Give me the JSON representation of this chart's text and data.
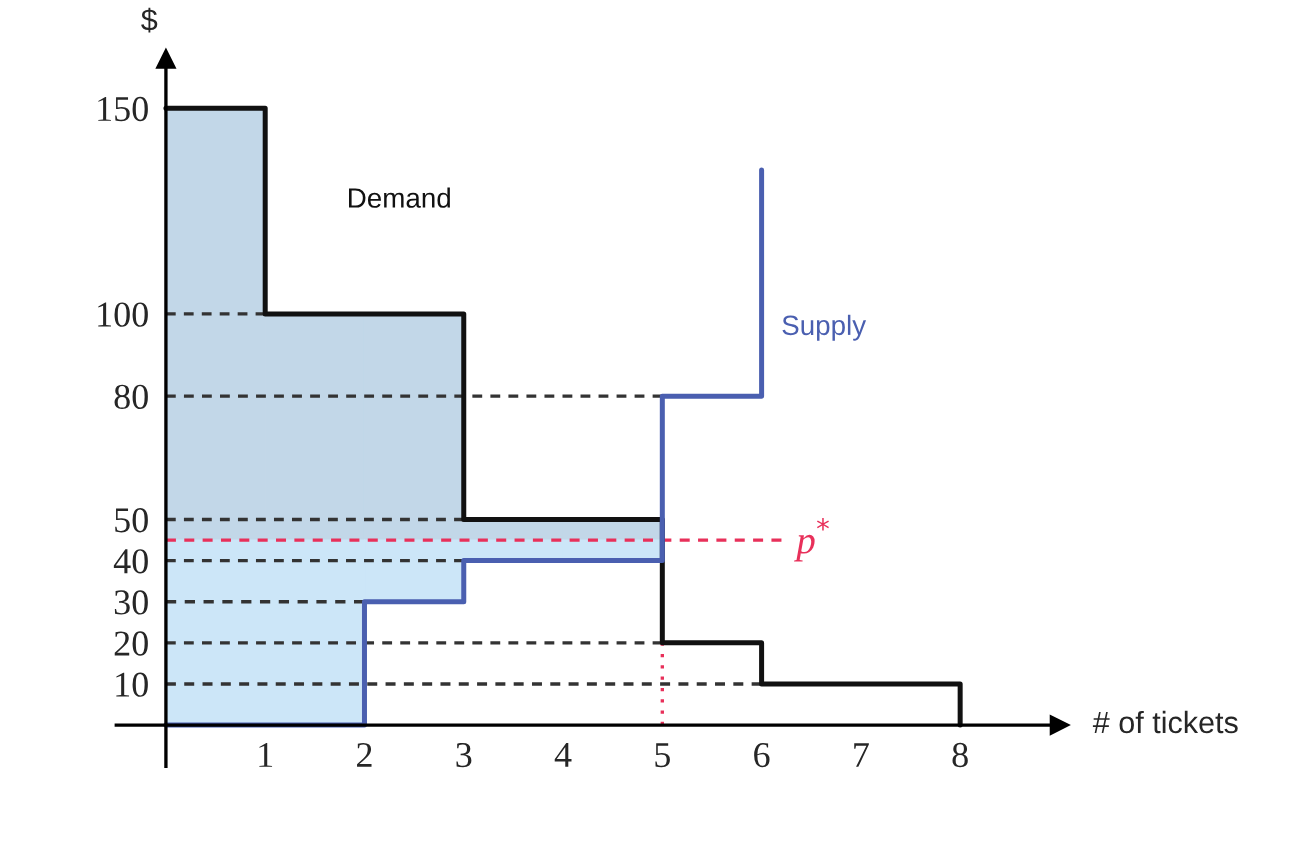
{
  "chart_data": {
    "type": "step",
    "xlabel": "# of tickets",
    "ylabel": "$",
    "xlim": [
      -0.5,
      9
    ],
    "ylim": [
      -10,
      162
    ],
    "xticks": [
      1,
      2,
      3,
      4,
      5,
      6,
      7,
      8
    ],
    "yticks": [
      10,
      20,
      30,
      40,
      50,
      80,
      100,
      150
    ],
    "grid": false,
    "legend": false,
    "series": [
      {
        "type": "bar",
        "color": "#c2d7e8",
        "x": [
          0.5,
          1.5,
          2.5,
          3.5,
          4.5
        ],
        "base": [
          45,
          45,
          45,
          45,
          45
        ],
        "values": [
          105,
          55,
          55,
          5,
          5
        ]
      },
      {
        "type": "bar",
        "color": "#cce6f8",
        "x": [
          0.5,
          1.5,
          2.5,
          3.5,
          4.5
        ],
        "base": [
          0,
          0,
          30,
          40,
          40
        ],
        "values": [
          45,
          45,
          15,
          5,
          5
        ]
      },
      {
        "type": "line",
        "color": "#333333",
        "line_style": "dashed",
        "x": [
          0,
          1
        ],
        "values": [
          100,
          100
        ]
      },
      {
        "type": "line",
        "color": "#333333",
        "line_style": "dashed",
        "x": [
          0,
          5
        ],
        "values": [
          80,
          80
        ]
      },
      {
        "type": "line",
        "color": "#333333",
        "line_style": "dashed",
        "x": [
          0,
          3
        ],
        "values": [
          50,
          50
        ]
      },
      {
        "type": "line",
        "color": "#333333",
        "line_style": "dashed",
        "x": [
          0,
          3
        ],
        "values": [
          40,
          40
        ]
      },
      {
        "type": "line",
        "color": "#333333",
        "line_style": "dashed",
        "x": [
          0,
          2
        ],
        "values": [
          30,
          30
        ]
      },
      {
        "type": "line",
        "color": "#333333",
        "line_style": "dashed",
        "x": [
          0,
          5
        ],
        "values": [
          20,
          20
        ]
      },
      {
        "type": "line",
        "color": "#333333",
        "line_style": "dashed",
        "x": [
          0,
          6
        ],
        "values": [
          10,
          10
        ]
      },
      {
        "type": "line",
        "color": "#e8305a",
        "line_style": "dotted",
        "x": [
          5,
          5
        ],
        "values": [
          0,
          20
        ]
      },
      {
        "type": "line",
        "name": "p$^{*}$",
        "color": "#e8305a",
        "line_style": "dashed",
        "x": [
          0,
          6.2
        ],
        "values": [
          45,
          45
        ]
      },
      {
        "name": "Demand",
        "color": "#111111",
        "line_style": "solid",
        "x": [
          0,
          1,
          3,
          5,
          6,
          8
        ],
        "values": [
          150,
          100,
          50,
          20,
          10,
          0
        ]
      },
      {
        "name": "Supply",
        "color": "#4a5fb0",
        "line_style": "solid",
        "x": [
          0,
          2,
          3,
          5,
          6
        ],
        "values": [
          0,
          30,
          40,
          80,
          135
        ]
      }
    ]
  }
}
